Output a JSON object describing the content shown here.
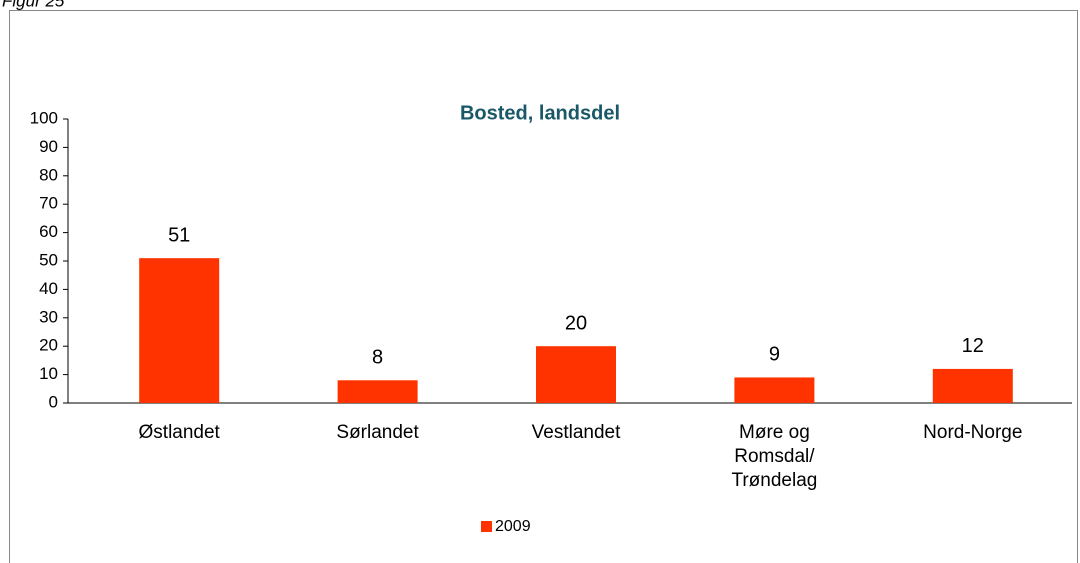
{
  "caption": "Figur 25",
  "chart_data": {
    "type": "bar",
    "title": "Bosted, landsdel",
    "categories": [
      "Østlandet",
      "Sørlandet",
      "Vestlandet",
      "Møre og Romsdal/ Trøndelag",
      "Nord-Norge"
    ],
    "series": [
      {
        "name": "2009",
        "color": "#ff3300",
        "values": [
          51,
          8,
          20,
          9,
          12
        ]
      }
    ],
    "ylim": [
      0,
      100
    ],
    "yticks": [
      0,
      10,
      20,
      30,
      40,
      50,
      60,
      70,
      80,
      90,
      100
    ],
    "grid": false,
    "legend": "bottom"
  }
}
